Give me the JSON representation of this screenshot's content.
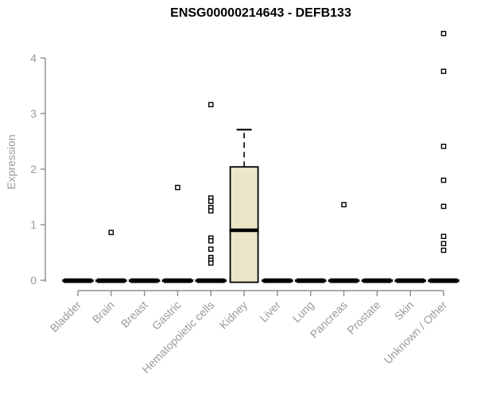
{
  "chart_data": {
    "type": "boxplot",
    "title": "ENSG00000214643 - DEFB133",
    "ylabel": "Expression",
    "xlabel": "",
    "ylim": [
      -0.2,
      4.6
    ],
    "yticks": [
      0,
      1,
      2,
      3,
      4
    ],
    "grid": false,
    "legend": null,
    "categories": [
      "Bladder",
      "Brain",
      "Breast",
      "Gastric",
      "Hematopoietic cells",
      "Kidney",
      "Liver",
      "Lung",
      "Pancreas",
      "Prostate",
      "Skin",
      "Unknown / Other"
    ],
    "boxes": [
      {
        "category": "Bladder",
        "q1": 0,
        "median": 0,
        "q3": 0,
        "whisker_low": 0,
        "whisker_high": 0,
        "outliers": []
      },
      {
        "category": "Brain",
        "q1": 0,
        "median": 0,
        "q3": 0,
        "whisker_low": 0,
        "whisker_high": 0,
        "outliers": [
          0.86
        ]
      },
      {
        "category": "Breast",
        "q1": 0,
        "median": 0,
        "q3": 0,
        "whisker_low": 0,
        "whisker_high": 0,
        "outliers": []
      },
      {
        "category": "Gastric",
        "q1": 0,
        "median": 0,
        "q3": 0,
        "whisker_low": 0,
        "whisker_high": 0,
        "outliers": [
          1.67
        ]
      },
      {
        "category": "Hematopoietic cells",
        "q1": 0,
        "median": 0,
        "q3": 0,
        "whisker_low": 0,
        "whisker_high": 0,
        "outliers": [
          3.16,
          1.48,
          1.42,
          1.31,
          1.25,
          0.76,
          0.71,
          0.56,
          0.41,
          0.36,
          0.31
        ]
      },
      {
        "category": "Kidney",
        "q1": 0,
        "median": 0.9,
        "q3": 2.04,
        "whisker_low": 0,
        "whisker_high": 2.71,
        "outliers": []
      },
      {
        "category": "Liver",
        "q1": 0,
        "median": 0,
        "q3": 0,
        "whisker_low": 0,
        "whisker_high": 0,
        "outliers": []
      },
      {
        "category": "Lung",
        "q1": 0,
        "median": 0,
        "q3": 0,
        "whisker_low": 0,
        "whisker_high": 0,
        "outliers": []
      },
      {
        "category": "Pancreas",
        "q1": 0,
        "median": 0,
        "q3": 0,
        "whisker_low": 0,
        "whisker_high": 0,
        "outliers": [
          1.36
        ]
      },
      {
        "category": "Prostate",
        "q1": 0,
        "median": 0,
        "q3": 0,
        "whisker_low": 0,
        "whisker_high": 0,
        "outliers": []
      },
      {
        "category": "Skin",
        "q1": 0,
        "median": 0,
        "q3": 0,
        "whisker_low": 0,
        "whisker_high": 0,
        "outliers": []
      },
      {
        "category": "Unknown / Other",
        "q1": 0,
        "median": 0,
        "q3": 0,
        "whisker_low": 0,
        "whisker_high": 0,
        "outliers": [
          4.44,
          3.76,
          2.41,
          1.8,
          1.33,
          0.79,
          0.66,
          0.54
        ]
      }
    ],
    "colors": {
      "box_fill": "#ECE6C9",
      "box_stroke": "#000000",
      "median": "#000000",
      "outlier_stroke": "#000000",
      "outlier_fill": "#FFFFFF",
      "axis": "#8D8D8D",
      "tick_label": "#9A9A9A",
      "title": "#000000",
      "background": "#FFFFFF"
    }
  }
}
